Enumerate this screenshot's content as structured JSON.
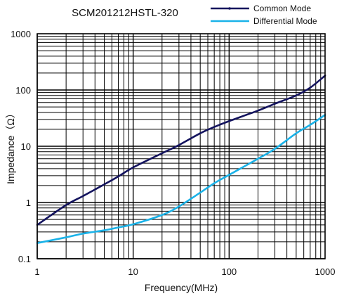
{
  "chart_data": {
    "type": "line",
    "title": "SCM201212HSTL-320",
    "xlabel": "Frequency(MHz)",
    "ylabel": "Impedance（Ω）",
    "x_scale": "log",
    "y_scale": "log",
    "xlim": [
      1,
      1000
    ],
    "ylim": [
      0.1,
      1000
    ],
    "x_ticks": [
      1,
      10,
      100,
      1000
    ],
    "x_tick_labels": [
      "1",
      "10",
      "100",
      "1000"
    ],
    "y_ticks": [
      0.1,
      1,
      10,
      100,
      1000
    ],
    "y_tick_labels": [
      "0.1",
      "1",
      "10",
      "100",
      "1000"
    ],
    "grid": true,
    "legend_position": "top-right",
    "series": [
      {
        "name": "Common Mode",
        "color": "#13135e",
        "x": [
          1,
          2,
          3,
          5,
          7,
          10,
          20,
          30,
          50,
          70,
          100,
          200,
          300,
          500,
          700,
          1000
        ],
        "y": [
          0.4,
          0.9,
          1.3,
          2.1,
          2.9,
          4.2,
          7.5,
          10.5,
          17,
          22,
          28,
          43,
          57,
          80,
          110,
          180
        ]
      },
      {
        "name": "Differential Mode",
        "color": "#1ab2e8",
        "x": [
          1,
          2,
          3,
          5,
          7,
          10,
          20,
          30,
          50,
          70,
          100,
          200,
          300,
          500,
          700,
          1000
        ],
        "y": [
          0.19,
          0.24,
          0.28,
          0.32,
          0.36,
          0.41,
          0.6,
          0.85,
          1.5,
          2.2,
          3.1,
          6,
          9,
          17,
          24,
          36
        ]
      }
    ]
  }
}
